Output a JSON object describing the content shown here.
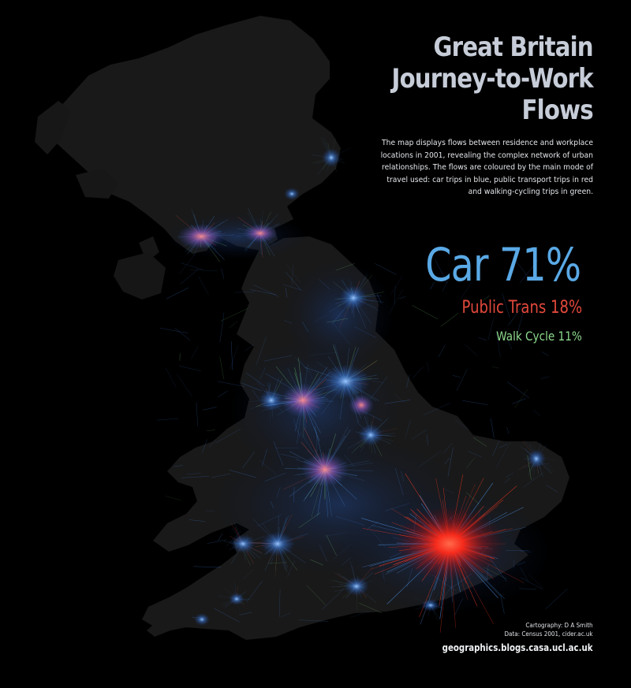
{
  "title": {
    "line1": "Great Britain",
    "line2": "Journey-to-Work",
    "line3": "Flows"
  },
  "description": "The map displays flows between residence and workplace locations in 2001, revealing the complex network of urban relationships. The flows are coloured by the main mode of travel used: car trips in blue, public transport trips in red and walking-cycling trips in green.",
  "stats": {
    "car": "Car 71%",
    "public_transport": "Public Trans 18%",
    "walk_cycle": "Walk Cycle  11%"
  },
  "credits": {
    "cartography": "Cartography: D A Smith",
    "data": "Data: Census 2001, cider.ac.uk",
    "url": "geographics.blogs.casa.ucl.ac.uk"
  },
  "colors": {
    "background": "#000000",
    "land": "#191919",
    "car": "#4a8fe0",
    "public_transport": "#ff2a1a",
    "walk_cycle": "#7fe07f",
    "title": "#c7cdd8"
  }
}
